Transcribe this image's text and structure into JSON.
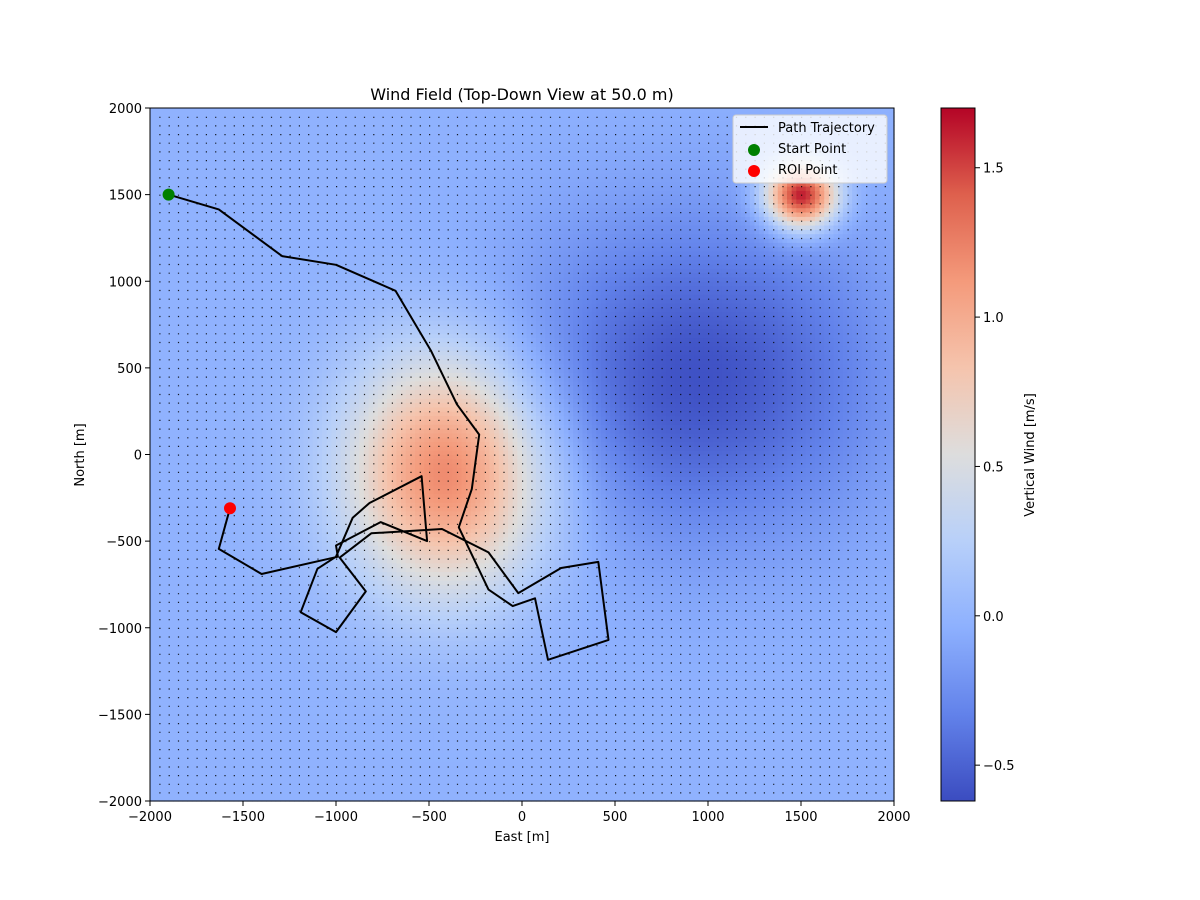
{
  "chart_data": {
    "type": "heatmap",
    "title": "Wind Field (Top-Down View at 50.0 m)",
    "xlabel": "East [m]",
    "ylabel": "North [m]",
    "xlim": [
      -2000,
      2000
    ],
    "ylim": [
      -2000,
      2000
    ],
    "x_ticks": [
      -2000,
      -1500,
      -1000,
      -500,
      0,
      500,
      1000,
      1500,
      2000
    ],
    "y_ticks": [
      -2000,
      -1500,
      -1000,
      -500,
      0,
      500,
      1000,
      1500,
      2000
    ],
    "x_tick_labels": [
      "−2000",
      "−1500",
      "−1000",
      "−500",
      "0",
      "500",
      "1000",
      "1500",
      "2000"
    ],
    "y_tick_labels": [
      "−2000",
      "−1500",
      "−1000",
      "−500",
      "0",
      "500",
      "1000",
      "1500",
      "2000"
    ],
    "colorbar": {
      "label": "Vertical Wind [m/s]",
      "range": [
        -0.62,
        1.7
      ],
      "ticks": [
        -0.5,
        0.0,
        0.5,
        1.0,
        1.5
      ],
      "tick_labels": [
        "−0.5",
        "0.0",
        "0.5",
        "1.0",
        "1.5"
      ],
      "colormap": "coolwarm"
    },
    "field": {
      "background": -0.02,
      "features": [
        {
          "kind": "updraft",
          "center": [
            -400,
            -100
          ],
          "amplitude": 1.27,
          "sigma_x": 380,
          "sigma_y": 480
        },
        {
          "kind": "downdraft",
          "center": [
            950,
            450
          ],
          "amplitude": -0.57,
          "sigma_x": 700,
          "sigma_y": 650
        },
        {
          "kind": "updraft",
          "center": [
            1500,
            1500
          ],
          "amplitude": 1.75,
          "sigma_x": 130,
          "sigma_y": 130
        }
      ]
    },
    "grid_markers": {
      "spacing": 50,
      "color": "#000000"
    },
    "series": [
      {
        "name": "Path Trajectory",
        "type": "line",
        "color": "#000000",
        "points": [
          [
            -1900,
            1500
          ],
          [
            -1630,
            1415
          ],
          [
            -1290,
            1145
          ],
          [
            -1000,
            1095
          ],
          [
            -680,
            945
          ],
          [
            -490,
            600
          ],
          [
            -350,
            290
          ],
          [
            -230,
            115
          ],
          [
            -270,
            -200
          ],
          [
            -340,
            -420
          ],
          [
            -180,
            -780
          ],
          [
            -50,
            -875
          ],
          [
            70,
            -830
          ],
          [
            140,
            -1185
          ],
          [
            465,
            -1070
          ],
          [
            410,
            -620
          ],
          [
            210,
            -655
          ],
          [
            -20,
            -800
          ],
          [
            -180,
            -565
          ],
          [
            -430,
            -430
          ],
          [
            -810,
            -455
          ],
          [
            -980,
            -595
          ],
          [
            -840,
            -790
          ],
          [
            -1000,
            -1025
          ],
          [
            -1190,
            -910
          ],
          [
            -1100,
            -660
          ],
          [
            -1000,
            -590
          ],
          [
            -910,
            -365
          ],
          [
            -820,
            -280
          ],
          [
            -540,
            -125
          ],
          [
            -510,
            -500
          ],
          [
            -760,
            -390
          ],
          [
            -1000,
            -525
          ],
          [
            -990,
            -590
          ],
          [
            -1400,
            -690
          ],
          [
            -1630,
            -545
          ],
          [
            -1570,
            -310
          ]
        ]
      },
      {
        "name": "Start Point",
        "type": "scatter",
        "color": "#008000",
        "points": [
          [
            -1900,
            1500
          ]
        ]
      },
      {
        "name": "ROI Point",
        "type": "scatter",
        "color": "#ff0000",
        "points": [
          [
            -1570,
            -310
          ]
        ]
      }
    ],
    "legend": {
      "position": "top-right",
      "entries": [
        "Path Trajectory",
        "Start Point",
        "ROI Point"
      ]
    }
  }
}
